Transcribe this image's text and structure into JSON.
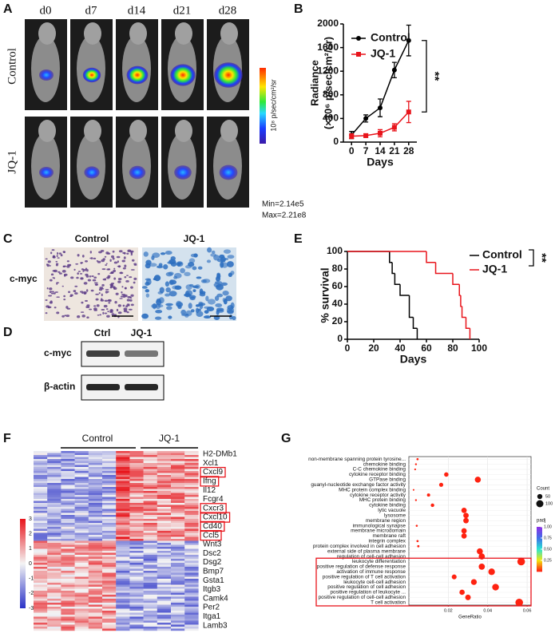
{
  "panel_labels": [
    "A",
    "B",
    "C",
    "D",
    "E",
    "F",
    "G"
  ],
  "panel_a": {
    "days": [
      "d0",
      "d7",
      "d14",
      "d21",
      "d28"
    ],
    "rows": [
      "Control",
      "JQ-1"
    ],
    "colorbar_label": "10⁸ p/sec/cm²/sr",
    "min": "Min=2.14e5",
    "max": "Max=2.21e8"
  },
  "panel_c": {
    "columns": [
      "Control",
      "JQ-1"
    ],
    "row": "c-myc"
  },
  "panel_d": {
    "columns": [
      "Ctrl",
      "JQ-1"
    ],
    "rows": [
      "c-myc",
      "β-actin"
    ]
  },
  "panel_f": {
    "groups": [
      "Control",
      "JQ-1"
    ],
    "genes": [
      {
        "name": "H2-DMb1"
      },
      {
        "name": "Xcl1"
      },
      {
        "name": "Cxcl9",
        "highlight": true
      },
      {
        "name": "Ifng",
        "highlight": true
      },
      {
        "name": "Il12"
      },
      {
        "name": "Fcgr4"
      },
      {
        "name": "Cxcr3",
        "highlight": true
      },
      {
        "name": "Cxcl10",
        "highlight": true
      },
      {
        "name": "Cd40",
        "highlight": true
      },
      {
        "name": "Ccl5",
        "highlight": true
      },
      {
        "name": "Wnt3"
      },
      {
        "name": "Dsc2"
      },
      {
        "name": "Dsg2"
      },
      {
        "name": "Bmp7"
      },
      {
        "name": "Gsta1"
      },
      {
        "name": "Itgb3"
      },
      {
        "name": "Camk4"
      },
      {
        "name": "Per2"
      },
      {
        "name": "Itga1"
      },
      {
        "name": "Lamb3"
      }
    ],
    "colorbar_ticks": [
      3,
      2,
      1,
      0,
      -1,
      -2,
      -3
    ]
  },
  "chart_data": [
    {
      "type": "line",
      "ylabel": [
        "Radiance",
        "(×10⁶ p/sec/cm²/sr)"
      ],
      "xlabel": "Days",
      "x": [
        0,
        7,
        14,
        21,
        28
      ],
      "series": [
        {
          "name": "Control",
          "color": "#000000",
          "marker": "circle",
          "values": [
            120,
            400,
            580,
            1220,
            1720
          ],
          "errors": [
            60,
            60,
            150,
            130,
            260
          ]
        },
        {
          "name": "JQ-1",
          "color": "#e8141b",
          "marker": "square",
          "values": [
            100,
            110,
            150,
            250,
            510
          ],
          "errors": [
            40,
            30,
            60,
            60,
            180
          ]
        }
      ],
      "xlim": [
        -4,
        32
      ],
      "xticks": [
        0,
        7,
        14,
        21,
        28
      ],
      "ylim": [
        0,
        2000
      ],
      "yticks": [
        0,
        400,
        800,
        1200,
        1600,
        2000
      ],
      "annotation": "**"
    },
    {
      "type": "line",
      "step": true,
      "ylabel": "% survival",
      "xlabel": "Days",
      "series": [
        {
          "name": "Control",
          "color": "#000000",
          "x": [
            0,
            32,
            34,
            36,
            40,
            47,
            50,
            53
          ],
          "values": [
            100,
            87.5,
            75,
            62.5,
            50,
            25,
            12.5,
            0
          ]
        },
        {
          "name": "JQ-1",
          "color": "#e8141b",
          "x": [
            0,
            60,
            67,
            80,
            85,
            86,
            87,
            90,
            93
          ],
          "values": [
            100,
            87.5,
            75,
            62.5,
            50,
            37.5,
            25,
            12.5,
            0
          ]
        }
      ],
      "xlim": [
        0,
        100
      ],
      "xticks": [
        0,
        20,
        40,
        60,
        80,
        100
      ],
      "ylim": [
        0,
        100
      ],
      "yticks": [
        0,
        20,
        40,
        60,
        80,
        100
      ],
      "annotation": "**"
    },
    {
      "type": "dot",
      "xlabel": "GeneRatio",
      "categories": [
        "non-membrane spanning protein tyrosine...",
        "chemokine binding",
        "C-C chemokine binding",
        "cytokine receptor binding",
        "GTPase binding",
        "guanyl-nucleotide exchange factor activity",
        "MHC protein complex binding",
        "cytokine receptor activity",
        "MHC protein binding",
        "cytokine binding",
        "lytic vacuole",
        "lysosome",
        "membrane region",
        "immunological synapse",
        "membrane microdomain",
        "membrane raft",
        "integrin complex",
        "protein complex involved in cell adhesion",
        "external side of plasma membrane",
        "regulation of cell-cell adhesion",
        "leukocyte differentiation",
        "positive regulation of defense response",
        "activation of immune response",
        "positive regulation of T cell activation",
        "leukocyte cell-cell adhesion",
        "positive regulation of cell adhesion",
        "positive regulation of leukocyte ...",
        "positive regulation of cell-cell adhesion",
        "T cell activation"
      ],
      "values": [
        0.0044,
        0.0036,
        0.0032,
        0.019,
        0.035,
        0.0164,
        0.0024,
        0.01,
        0.0036,
        0.012,
        0.028,
        0.029,
        0.029,
        0.004,
        0.028,
        0.028,
        0.0044,
        0.0048,
        0.036,
        0.037,
        0.057,
        0.037,
        0.042,
        0.023,
        0.033,
        0.044,
        0.027,
        0.03,
        0.056
      ],
      "sizes": [
        9,
        7,
        6,
        38,
        70,
        33,
        5,
        20,
        7,
        24,
        56,
        58,
        58,
        8,
        56,
        56,
        9,
        10,
        72,
        74,
        114,
        74,
        84,
        46,
        66,
        88,
        54,
        60,
        112
      ],
      "padj": [
        0.01,
        0.01,
        0.01,
        0.01,
        0.01,
        0.01,
        0.01,
        0.01,
        0.01,
        0.01,
        0.01,
        0.01,
        0.01,
        0.01,
        0.01,
        0.01,
        0.01,
        0.01,
        0.01,
        0.01,
        0.01,
        0.01,
        0.01,
        0.01,
        0.01,
        0.01,
        0.01,
        0.01,
        0.01
      ],
      "xlim": [
        0,
        0.062
      ],
      "xticks": [
        0.02,
        0.04,
        0.06
      ],
      "grid": true,
      "highlight_range": [
        20,
        28
      ],
      "size_legend": {
        "title": "Count",
        "ticks": [
          50,
          100
        ]
      },
      "color_legend": {
        "title": "padj",
        "colorscale": [
          "#ff1a10",
          "#f2e60c",
          "#28e6d2",
          "#3f6ee8",
          "#8e2ee6"
        ],
        "range": [
          0,
          1
        ],
        "ticks": [
          {
            "value": 1,
            "label": "1.00"
          },
          0.75,
          {
            "value": 0.5,
            "label": "0.50"
          },
          0.25
        ]
      }
    }
  ]
}
